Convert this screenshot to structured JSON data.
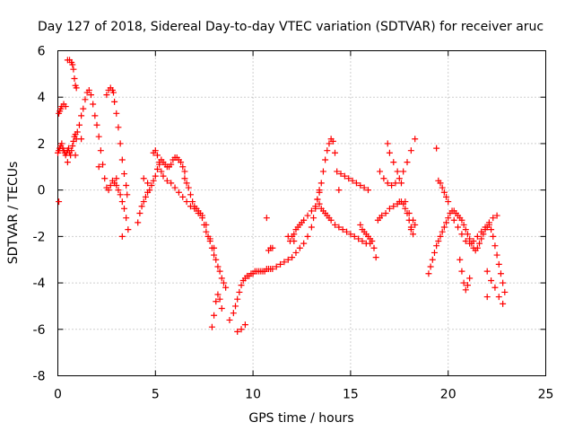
{
  "chart_data": {
    "type": "scatter",
    "title": "Day 127 of 2018, Sidereal Day-to-day VTEC variation (SDTVAR) for receiver aruc",
    "xlabel": "GPS time / hours",
    "ylabel": "SDTVAR / TECUs",
    "xlim": [
      0,
      25
    ],
    "ylim": [
      -8,
      6
    ],
    "xticks": [
      0,
      5,
      10,
      15,
      20,
      25
    ],
    "yticks": [
      -8,
      -6,
      -4,
      -2,
      0,
      2,
      4,
      6
    ],
    "grid": true,
    "marker": "+",
    "color": "#ff0000",
    "series": [
      {
        "name": "SDTVAR",
        "x": [
          0.0,
          0.05,
          0.1,
          0.15,
          0.2,
          0.25,
          0.3,
          0.35,
          0.4,
          0.45,
          0.5,
          0.55,
          0.6,
          0.65,
          0.7,
          0.75,
          0.8,
          0.85,
          0.9,
          0.95,
          1.0,
          1.1,
          1.2,
          1.3,
          1.4,
          1.5,
          1.6,
          1.7,
          1.8,
          1.9,
          2.0,
          2.1,
          2.2,
          2.3,
          2.4,
          2.5,
          2.6,
          2.7,
          2.8,
          2.9,
          3.0,
          3.1,
          3.2,
          3.3,
          3.4,
          3.5,
          3.6,
          0.05,
          0.1,
          0.15,
          0.2,
          0.3,
          0.4,
          0.5,
          0.6,
          0.7,
          0.75,
          0.8,
          0.85,
          0.9,
          0.95,
          2.5,
          2.6,
          2.7,
          2.8,
          2.85,
          2.9,
          3.0,
          3.1,
          3.2,
          3.3,
          3.4,
          3.5,
          3.55,
          0.05,
          0.5,
          0.9,
          1.2,
          2.1,
          3.0,
          3.3,
          4.1,
          4.2,
          4.3,
          4.4,
          4.5,
          4.6,
          4.7,
          4.8,
          4.9,
          5.0,
          5.1,
          5.2,
          5.3,
          5.4,
          5.5,
          5.6,
          5.7,
          5.8,
          5.9,
          6.0,
          6.1,
          6.2,
          6.3,
          6.4,
          6.5,
          4.9,
          5.0,
          5.1,
          5.2,
          5.3,
          5.4,
          5.6,
          5.8,
          6.0,
          6.2,
          6.4,
          6.6,
          6.8,
          7.0,
          7.2,
          7.4,
          7.5,
          7.6,
          7.7,
          7.8,
          7.9,
          8.0,
          8.1,
          8.2,
          8.3,
          8.4,
          8.5,
          8.6,
          6.5,
          6.6,
          6.7,
          6.8,
          6.9,
          7.0,
          7.1,
          7.2,
          7.3,
          7.4,
          7.6,
          7.8,
          8.0,
          7.9,
          8.0,
          8.1,
          8.2,
          8.3,
          8.4,
          4.4,
          4.6,
          8.8,
          9.0,
          9.1,
          9.2,
          9.3,
          9.4,
          9.5,
          9.6,
          9.7,
          9.8,
          9.9,
          10.0,
          10.1,
          10.2,
          10.3,
          10.4,
          10.5,
          10.6,
          10.7,
          10.8,
          10.9,
          11.0,
          11.2,
          11.4,
          11.6,
          11.8,
          12.0,
          12.2,
          12.4,
          12.6,
          12.8,
          13.0,
          13.1,
          13.2,
          13.3,
          13.4,
          9.2,
          9.4,
          9.6,
          10.8,
          10.9,
          11.0,
          11.9,
          12.0,
          12.1,
          12.2,
          12.3,
          12.4,
          12.5,
          12.6,
          12.8,
          13.0,
          13.2,
          11.8,
          12.1,
          13.4,
          13.5,
          13.6,
          13.7,
          13.8,
          13.9,
          14.0,
          14.1,
          14.2,
          14.3,
          14.4,
          13.3,
          13.4,
          13.5,
          13.6,
          13.7,
          13.8,
          13.9,
          14.0,
          14.2,
          14.4,
          14.6,
          14.8,
          15.0,
          15.2,
          15.4,
          15.6,
          15.8,
          16.0,
          14.5,
          14.7,
          14.9,
          15.1,
          15.3,
          15.5,
          15.7,
          15.9,
          15.5,
          15.6,
          15.7,
          15.8,
          15.9,
          16.0,
          16.1,
          16.2,
          16.3,
          16.4,
          16.5,
          16.6,
          16.8,
          17.0,
          17.2,
          17.4,
          17.5,
          17.6,
          17.7,
          17.8,
          17.9,
          18.0,
          18.1,
          18.2,
          16.5,
          16.7,
          16.9,
          17.1,
          17.3,
          17.5,
          17.7,
          17.9,
          18.1,
          18.3,
          16.9,
          17.0,
          17.2,
          17.4,
          17.6,
          17.8,
          18.0,
          18.2,
          18.3,
          18.1,
          19.0,
          19.1,
          19.2,
          19.3,
          19.4,
          19.5,
          19.6,
          19.7,
          19.8,
          19.9,
          20.0,
          20.1,
          20.2,
          20.3,
          20.4,
          20.5,
          20.6,
          20.7,
          20.8,
          20.9,
          21.0,
          21.1,
          21.2,
          21.3,
          21.4,
          21.5,
          21.6,
          21.7,
          21.8,
          21.9,
          22.0,
          22.1,
          22.2,
          22.3,
          22.4,
          22.5,
          22.6,
          22.7,
          22.8,
          22.9,
          19.5,
          19.6,
          19.7,
          19.8,
          19.9,
          20.0,
          20.3,
          20.5,
          20.7,
          20.9,
          21.1,
          21.3,
          21.5,
          21.7,
          21.9,
          22.1,
          22.3,
          22.5,
          20.6,
          20.7,
          20.8,
          20.9,
          21.0,
          21.1,
          22.0,
          22.2,
          22.4,
          22.6,
          22.8,
          19.4,
          10.7,
          22.0
        ],
        "y": [
          1.6,
          1.7,
          1.8,
          1.9,
          2.0,
          1.8,
          1.7,
          1.6,
          1.5,
          1.6,
          1.7,
          1.8,
          1.6,
          1.5,
          1.7,
          1.9,
          2.1,
          2.3,
          2.4,
          2.2,
          2.5,
          2.8,
          3.2,
          3.5,
          3.9,
          4.2,
          4.3,
          4.1,
          3.7,
          3.2,
          2.8,
          2.3,
          1.7,
          1.1,
          0.5,
          0.1,
          0.0,
          0.2,
          0.4,
          0.3,
          0.2,
          0.0,
          -0.2,
          -0.5,
          -0.8,
          -1.2,
          -1.7,
          3.3,
          3.4,
          3.5,
          3.6,
          3.7,
          3.6,
          5.6,
          5.6,
          5.5,
          5.4,
          5.2,
          4.8,
          4.5,
          4.4,
          4.1,
          4.3,
          4.4,
          4.3,
          4.2,
          3.8,
          3.3,
          2.7,
          2.0,
          1.3,
          0.7,
          0.2,
          -0.2,
          -0.5,
          1.2,
          1.5,
          2.2,
          1.0,
          0.5,
          -2.0,
          -1.4,
          -1.0,
          -0.7,
          -0.5,
          -0.3,
          -0.1,
          0.0,
          0.2,
          0.4,
          0.6,
          0.9,
          1.1,
          1.3,
          1.2,
          1.1,
          1.0,
          1.0,
          1.1,
          1.3,
          1.4,
          1.4,
          1.3,
          1.2,
          1.0,
          0.8,
          1.6,
          1.7,
          1.5,
          1.2,
          0.8,
          0.6,
          0.4,
          0.3,
          0.1,
          -0.1,
          -0.3,
          -0.5,
          -0.7,
          -0.8,
          -1.0,
          -1.2,
          -1.5,
          -1.8,
          -2.0,
          -2.2,
          -2.5,
          -2.8,
          -3.0,
          -3.3,
          -3.5,
          -3.8,
          -4.0,
          -4.2,
          0.5,
          0.3,
          0.1,
          -0.2,
          -0.5,
          -0.7,
          -0.8,
          -0.9,
          -1.0,
          -1.1,
          -1.5,
          -2.1,
          -2.5,
          -5.9,
          -5.4,
          -4.8,
          -4.5,
          -4.7,
          -5.1,
          0.5,
          0.3,
          -5.6,
          -5.3,
          -5.0,
          -4.7,
          -4.4,
          -4.1,
          -3.9,
          -3.8,
          -3.7,
          -3.7,
          -3.6,
          -3.6,
          -3.5,
          -3.5,
          -3.5,
          -3.5,
          -3.5,
          -3.5,
          -3.4,
          -3.4,
          -3.4,
          -3.4,
          -3.3,
          -3.2,
          -3.1,
          -3.0,
          -2.9,
          -2.7,
          -2.5,
          -2.3,
          -2.0,
          -1.6,
          -1.2,
          -0.8,
          -0.4,
          -0.1,
          -6.1,
          -6.0,
          -5.8,
          -2.6,
          -2.5,
          -2.5,
          -2.2,
          -2.0,
          -1.9,
          -1.7,
          -1.6,
          -1.5,
          -1.4,
          -1.3,
          -1.1,
          -0.9,
          -0.7,
          -2.0,
          -2.2,
          0.0,
          0.3,
          0.8,
          1.3,
          1.7,
          2.0,
          2.2,
          2.1,
          1.6,
          0.8,
          0.0,
          -0.4,
          -0.6,
          -0.8,
          -0.9,
          -1.0,
          -1.1,
          -1.2,
          -1.3,
          -1.5,
          -1.6,
          -1.7,
          -1.8,
          -1.9,
          -2.0,
          -2.1,
          -2.2,
          -2.3,
          -2.3,
          0.7,
          0.6,
          0.5,
          0.4,
          0.3,
          0.2,
          0.1,
          0.0,
          -1.5,
          -1.7,
          -1.8,
          -1.9,
          -2.0,
          -2.1,
          -2.2,
          -2.5,
          -2.9,
          -1.3,
          -1.2,
          -1.1,
          -1.0,
          -0.8,
          -0.7,
          -0.6,
          -0.5,
          -0.5,
          -0.6,
          -0.8,
          -1.0,
          -1.3,
          -1.6,
          -1.9,
          0.8,
          0.5,
          0.3,
          0.2,
          0.3,
          0.5,
          0.8,
          1.2,
          1.7,
          2.2,
          2.0,
          1.6,
          1.2,
          0.8,
          0.3,
          -0.5,
          -1.0,
          -1.3,
          -1.5,
          -1.7,
          -3.6,
          -3.3,
          -3.0,
          -2.7,
          -2.4,
          -2.2,
          -2.0,
          -1.8,
          -1.6,
          -1.4,
          -1.2,
          -1.0,
          -0.9,
          -0.9,
          -1.0,
          -1.1,
          -1.2,
          -1.3,
          -1.5,
          -1.7,
          -1.9,
          -2.1,
          -2.3,
          -2.5,
          -2.6,
          -2.5,
          -2.3,
          -2.1,
          -1.9,
          -1.7,
          -1.6,
          -1.5,
          -1.7,
          -2.0,
          -2.4,
          -2.8,
          -3.2,
          -3.6,
          -4.0,
          -4.4,
          0.4,
          0.3,
          0.1,
          -0.1,
          -0.3,
          -0.5,
          -1.3,
          -1.6,
          -1.9,
          -2.2,
          -2.3,
          -2.2,
          -2.0,
          -1.8,
          -1.6,
          -1.4,
          -1.2,
          -1.1,
          -3.0,
          -3.5,
          -4.0,
          -4.3,
          -4.1,
          -3.8,
          -3.5,
          -3.9,
          -4.2,
          -4.6,
          -4.9,
          1.8,
          -1.2,
          -4.6
        ]
      }
    ]
  }
}
